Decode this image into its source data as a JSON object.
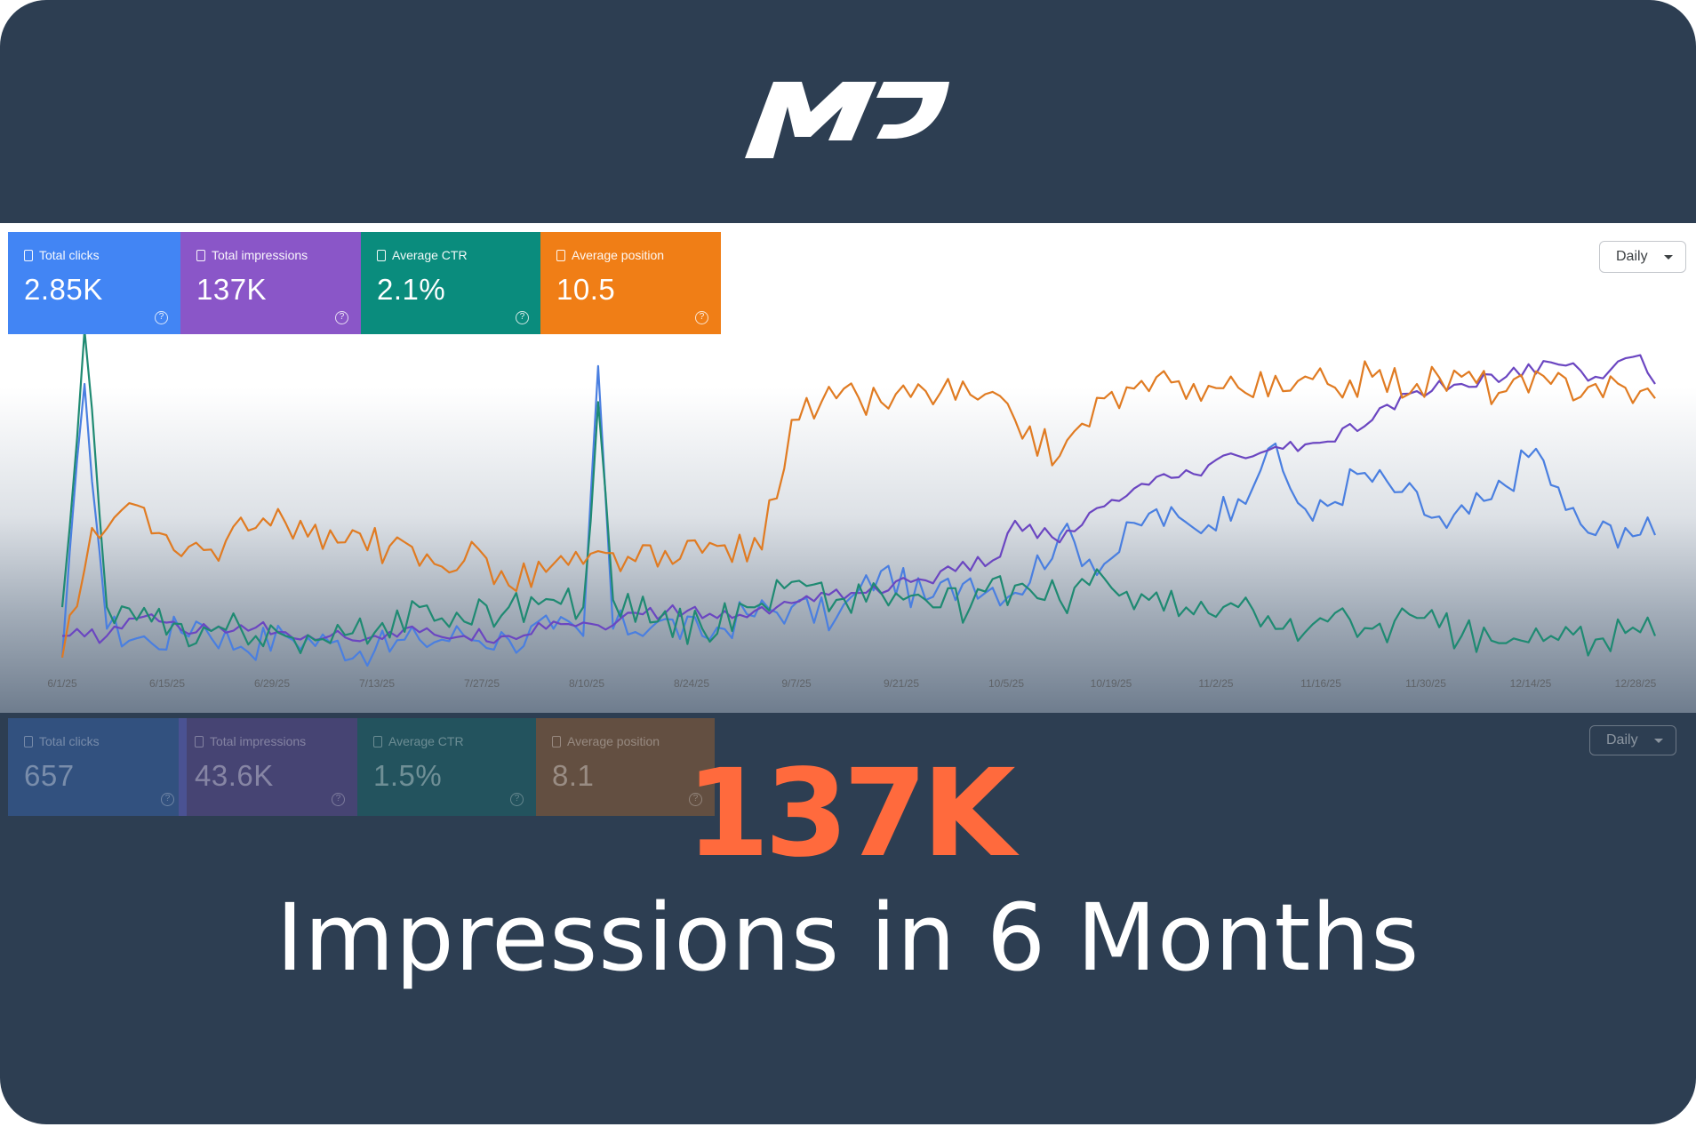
{
  "brand": {
    "logo_text": "MP"
  },
  "current_period": {
    "cards": [
      {
        "label": "Total clicks",
        "value": "2.85K",
        "color": "#4285f4"
      },
      {
        "label": "Total impressions",
        "value": "137K",
        "color": "#8a56c8"
      },
      {
        "label": "Average CTR",
        "value": "2.1%",
        "color": "#0a8c7d"
      },
      {
        "label": "Average position",
        "value": "10.5",
        "color": "#f07e16"
      }
    ],
    "granularity": "Daily"
  },
  "previous_period": {
    "cards": [
      {
        "label": "Total clicks",
        "value": "657"
      },
      {
        "label": "Total impressions",
        "value": "43.6K"
      },
      {
        "label": "Average CTR",
        "value": "1.5%"
      },
      {
        "label": "Average position",
        "value": "8.1"
      }
    ],
    "granularity": "Daily"
  },
  "headline": {
    "number": "137K",
    "caption": "Impressions in 6 Months"
  },
  "chart_data": {
    "type": "line",
    "x_tick_labels": [
      "6/1/25",
      "6/15/25",
      "6/29/25",
      "7/13/25",
      "7/27/25",
      "8/10/25",
      "8/24/25",
      "9/7/25",
      "9/21/25",
      "10/5/25",
      "10/19/25",
      "11/2/25",
      "11/16/25",
      "11/30/25",
      "12/14/25",
      "12/28/25"
    ],
    "y_axis_labels_shown": false,
    "grid": false,
    "legend": "metric cards (top-left)",
    "series_colors": [
      "#4a7fe0",
      "#6b46c1",
      "#1f8a72",
      "#e07b22"
    ],
    "series": [
      {
        "name": "Total clicks",
        "color": "#4a7fe0",
        "anchors": [
          [
            0,
            4
          ],
          [
            3,
            80
          ],
          [
            6,
            12
          ],
          [
            12,
            8
          ],
          [
            18,
            14
          ],
          [
            24,
            7
          ],
          [
            30,
            10
          ],
          [
            36,
            8
          ],
          [
            42,
            6
          ],
          [
            48,
            9
          ],
          [
            54,
            10
          ],
          [
            60,
            9
          ],
          [
            66,
            12
          ],
          [
            70,
            10
          ],
          [
            72,
            85
          ],
          [
            74,
            12
          ],
          [
            80,
            14
          ],
          [
            86,
            10
          ],
          [
            92,
            16
          ],
          [
            98,
            18
          ],
          [
            104,
            15
          ],
          [
            110,
            28
          ],
          [
            116,
            20
          ],
          [
            122,
            26
          ],
          [
            128,
            22
          ],
          [
            134,
            38
          ],
          [
            140,
            30
          ],
          [
            146,
            44
          ],
          [
            152,
            40
          ],
          [
            158,
            48
          ],
          [
            162,
            62
          ],
          [
            168,
            42
          ],
          [
            174,
            55
          ],
          [
            180,
            50
          ],
          [
            186,
            40
          ],
          [
            192,
            48
          ],
          [
            198,
            62
          ],
          [
            202,
            45
          ],
          [
            206,
            38
          ],
          [
            210,
            40
          ],
          [
            214,
            38
          ]
        ]
      },
      {
        "name": "Total impressions",
        "color": "#6b46c1",
        "anchors": [
          [
            0,
            10
          ],
          [
            6,
            10
          ],
          [
            12,
            16
          ],
          [
            18,
            11
          ],
          [
            24,
            13
          ],
          [
            30,
            11
          ],
          [
            36,
            10
          ],
          [
            42,
            10
          ],
          [
            48,
            11
          ],
          [
            54,
            10
          ],
          [
            60,
            10
          ],
          [
            66,
            14
          ],
          [
            72,
            13
          ],
          [
            78,
            16
          ],
          [
            84,
            17
          ],
          [
            90,
            15
          ],
          [
            96,
            18
          ],
          [
            102,
            22
          ],
          [
            108,
            22
          ],
          [
            114,
            25
          ],
          [
            120,
            28
          ],
          [
            126,
            32
          ],
          [
            128,
            42
          ],
          [
            134,
            36
          ],
          [
            140,
            46
          ],
          [
            146,
            52
          ],
          [
            152,
            55
          ],
          [
            158,
            60
          ],
          [
            164,
            62
          ],
          [
            170,
            64
          ],
          [
            176,
            70
          ],
          [
            182,
            78
          ],
          [
            188,
            80
          ],
          [
            194,
            82
          ],
          [
            200,
            86
          ],
          [
            206,
            82
          ],
          [
            212,
            88
          ],
          [
            214,
            80
          ]
        ]
      },
      {
        "name": "Average CTR",
        "color": "#1f8a72",
        "anchors": [
          [
            0,
            18
          ],
          [
            3,
            95
          ],
          [
            6,
            18
          ],
          [
            12,
            14
          ],
          [
            18,
            8
          ],
          [
            24,
            12
          ],
          [
            30,
            10
          ],
          [
            36,
            8
          ],
          [
            42,
            11
          ],
          [
            48,
            18
          ],
          [
            54,
            14
          ],
          [
            60,
            18
          ],
          [
            66,
            20
          ],
          [
            70,
            18
          ],
          [
            72,
            75
          ],
          [
            74,
            20
          ],
          [
            80,
            14
          ],
          [
            86,
            12
          ],
          [
            92,
            18
          ],
          [
            98,
            25
          ],
          [
            104,
            20
          ],
          [
            110,
            22
          ],
          [
            116,
            20
          ],
          [
            122,
            18
          ],
          [
            128,
            24
          ],
          [
            134,
            20
          ],
          [
            140,
            26
          ],
          [
            146,
            20
          ],
          [
            152,
            16
          ],
          [
            158,
            18
          ],
          [
            164,
            12
          ],
          [
            170,
            14
          ],
          [
            176,
            12
          ],
          [
            182,
            15
          ],
          [
            188,
            10
          ],
          [
            194,
            8
          ],
          [
            200,
            10
          ],
          [
            206,
            9
          ],
          [
            212,
            11
          ],
          [
            214,
            10
          ]
        ]
      },
      {
        "name": "Average position",
        "color": "#e07b22",
        "anchors": [
          [
            0,
            4
          ],
          [
            4,
            40
          ],
          [
            8,
            45
          ],
          [
            14,
            38
          ],
          [
            20,
            34
          ],
          [
            26,
            40
          ],
          [
            32,
            42
          ],
          [
            38,
            36
          ],
          [
            44,
            35
          ],
          [
            50,
            30
          ],
          [
            56,
            34
          ],
          [
            60,
            24
          ],
          [
            66,
            30
          ],
          [
            70,
            30
          ],
          [
            76,
            32
          ],
          [
            82,
            30
          ],
          [
            88,
            35
          ],
          [
            94,
            34
          ],
          [
            98,
            70
          ],
          [
            104,
            76
          ],
          [
            110,
            75
          ],
          [
            116,
            78
          ],
          [
            122,
            77
          ],
          [
            128,
            70
          ],
          [
            134,
            60
          ],
          [
            140,
            76
          ],
          [
            146,
            78
          ],
          [
            152,
            80
          ],
          [
            158,
            79
          ],
          [
            164,
            78
          ],
          [
            170,
            80
          ],
          [
            176,
            82
          ],
          [
            182,
            80
          ],
          [
            188,
            82
          ],
          [
            194,
            78
          ],
          [
            200,
            80
          ],
          [
            206,
            80
          ],
          [
            212,
            78
          ],
          [
            214,
            76
          ]
        ]
      }
    ]
  }
}
